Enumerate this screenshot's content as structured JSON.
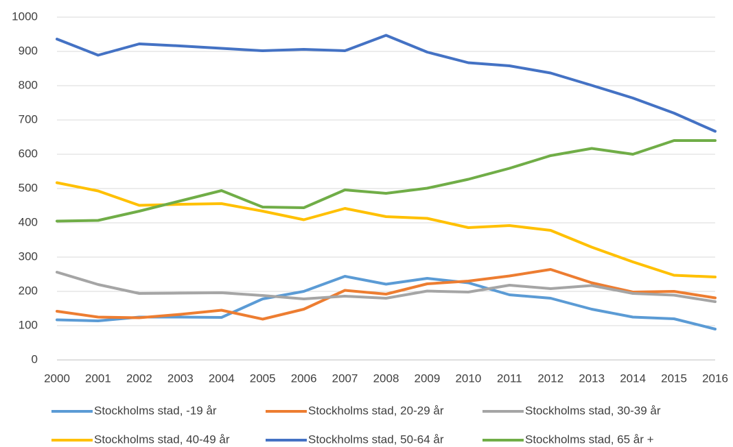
{
  "chart_data": {
    "type": "line",
    "categories": [
      "2000",
      "2001",
      "2002",
      "2003",
      "2004",
      "2005",
      "2006",
      "2007",
      "2008",
      "2009",
      "2010",
      "2011",
      "2012",
      "2013",
      "2014",
      "2015",
      "2016"
    ],
    "series": [
      {
        "name": "Stockholms stad, -19 år",
        "color": "#5B9BD5",
        "values": [
          117,
          114,
          125,
          125,
          124,
          178,
          200,
          244,
          221,
          238,
          225,
          190,
          180,
          148,
          125,
          120,
          90
        ]
      },
      {
        "name": "Stockholms stad, 20-29 år",
        "color": "#ED7D31",
        "values": [
          142,
          125,
          123,
          133,
          145,
          119,
          148,
          203,
          192,
          222,
          230,
          245,
          264,
          225,
          198,
          200,
          181
        ]
      },
      {
        "name": "Stockholms stad, 30-39 år",
        "color": "#A5A5A5",
        "values": [
          256,
          220,
          194,
          195,
          196,
          188,
          178,
          186,
          180,
          201,
          198,
          218,
          208,
          217,
          194,
          189,
          170
        ]
      },
      {
        "name": "Stockholms stad, 40-49 år",
        "color": "#FFC000",
        "values": [
          517,
          493,
          451,
          454,
          456,
          434,
          409,
          442,
          418,
          413,
          386,
          392,
          378,
          329,
          286,
          247,
          242
        ]
      },
      {
        "name": "Stockholms stad, 50-64 år",
        "color": "#4472C4",
        "values": [
          936,
          889,
          922,
          916,
          909,
          902,
          906,
          902,
          947,
          898,
          867,
          858,
          837,
          801,
          764,
          720,
          667
        ]
      },
      {
        "name": "Stockholms stad, 65 år +",
        "color": "#70AD47",
        "values": [
          405,
          407,
          434,
          464,
          494,
          446,
          444,
          496,
          486,
          501,
          527,
          559,
          596,
          617,
          600,
          640,
          640
        ]
      }
    ],
    "ylim": [
      0,
      1000
    ],
    "yticks": [
      0,
      100,
      200,
      300,
      400,
      500,
      600,
      700,
      800,
      900,
      1000
    ],
    "grid": true,
    "legend": "bottom"
  }
}
